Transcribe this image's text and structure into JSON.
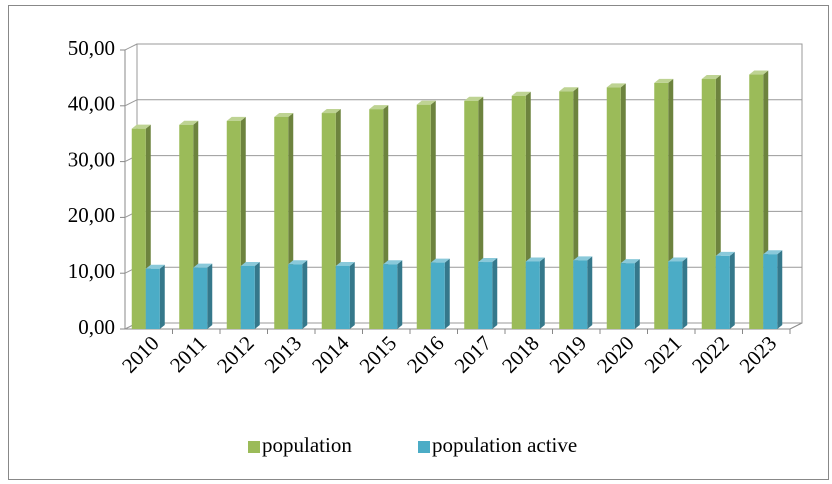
{
  "chart_data": {
    "type": "bar3d",
    "categories": [
      "2010",
      "2011",
      "2012",
      "2013",
      "2014",
      "2015",
      "2016",
      "2017",
      "2018",
      "2019",
      "2020",
      "2021",
      "2022",
      "2023"
    ],
    "series": [
      {
        "name": "population",
        "color": "#9bbb59",
        "values": [
          35.9,
          36.6,
          37.3,
          38.0,
          38.7,
          39.4,
          40.2,
          40.9,
          41.8,
          42.6,
          43.3,
          44.1,
          44.8,
          45.6
        ]
      },
      {
        "name": "population active",
        "color": "#4bacc6",
        "values": [
          10.8,
          11.0,
          11.3,
          11.6,
          11.3,
          11.6,
          11.9,
          12.0,
          12.1,
          12.3,
          11.8,
          12.1,
          13.1,
          13.4
        ]
      }
    ],
    "ylim": [
      0,
      50
    ],
    "yticks": [
      {
        "value": 0,
        "label": "0,00"
      },
      {
        "value": 10,
        "label": "10,00"
      },
      {
        "value": 20,
        "label": "20,00"
      },
      {
        "value": 30,
        "label": "30,00"
      },
      {
        "value": 40,
        "label": "40,00"
      },
      {
        "value": 50,
        "label": "50,00"
      }
    ],
    "grid": true,
    "legend": "bottom"
  }
}
